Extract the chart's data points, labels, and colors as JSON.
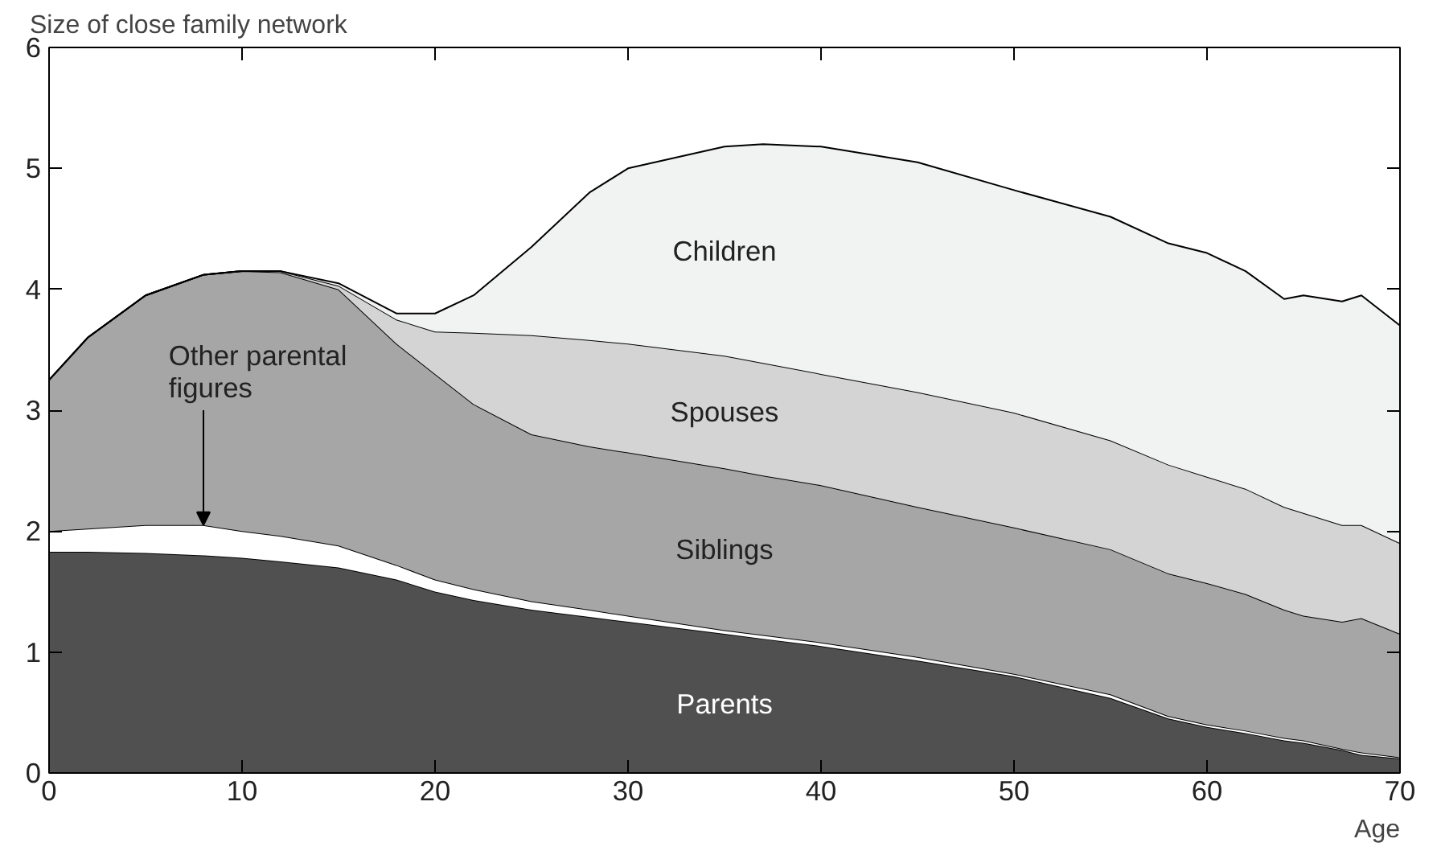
{
  "chart_data": {
    "type": "area",
    "stacked": true,
    "xlabel": "Age",
    "ylabel": "Size of close family network",
    "x": [
      0,
      2,
      5,
      8,
      10,
      12,
      15,
      18,
      20,
      22,
      25,
      28,
      30,
      35,
      37,
      40,
      45,
      50,
      55,
      58,
      60,
      62,
      64,
      65,
      67,
      68,
      70
    ],
    "xlim": [
      0,
      70
    ],
    "ylim": [
      0,
      6
    ],
    "xticks": [
      0,
      10,
      20,
      30,
      40,
      50,
      60,
      70
    ],
    "yticks": [
      0,
      1,
      2,
      3,
      4,
      5,
      6
    ],
    "grid": false,
    "series": [
      {
        "name": "Parents",
        "color": "#505050",
        "values": [
          1.83,
          1.83,
          1.82,
          1.8,
          1.78,
          1.75,
          1.7,
          1.6,
          1.5,
          1.43,
          1.35,
          1.29,
          1.25,
          1.15,
          1.11,
          1.05,
          0.93,
          0.8,
          0.62,
          0.45,
          0.38,
          0.33,
          0.27,
          0.25,
          0.19,
          0.15,
          0.12
        ]
      },
      {
        "name": "Other parental figures",
        "color": "#ffffff",
        "values": [
          0.17,
          0.19,
          0.23,
          0.25,
          0.22,
          0.21,
          0.18,
          0.12,
          0.1,
          0.09,
          0.07,
          0.06,
          0.05,
          0.03,
          0.03,
          0.03,
          0.03,
          0.02,
          0.03,
          0.02,
          0.02,
          0.02,
          0.02,
          0.02,
          0.01,
          0.02,
          0.01
        ]
      },
      {
        "name": "Siblings",
        "color": "#a6a6a6",
        "values": [
          1.25,
          1.58,
          1.9,
          2.07,
          2.15,
          2.18,
          2.12,
          1.83,
          1.7,
          1.53,
          1.38,
          1.35,
          1.35,
          1.34,
          1.32,
          1.3,
          1.24,
          1.21,
          1.2,
          1.18,
          1.17,
          1.13,
          1.06,
          1.03,
          1.05,
          1.11,
          1.02
        ]
      },
      {
        "name": "Spouses",
        "color": "#d4d4d4",
        "values": [
          0,
          0,
          0,
          0,
          0,
          0.01,
          0.03,
          0.2,
          0.35,
          0.59,
          0.82,
          0.88,
          0.9,
          0.93,
          0.93,
          0.92,
          0.95,
          0.95,
          0.9,
          0.9,
          0.88,
          0.87,
          0.85,
          0.85,
          0.8,
          0.77,
          0.75
        ]
      },
      {
        "name": "Children",
        "color": "#f1f3f2",
        "values": [
          0,
          0,
          0,
          0,
          0,
          0,
          0.02,
          0.05,
          0.15,
          0.31,
          0.73,
          1.22,
          1.45,
          1.73,
          1.81,
          1.88,
          1.9,
          1.84,
          1.85,
          1.83,
          1.85,
          1.8,
          1.72,
          1.8,
          1.85,
          1.9,
          1.8
        ]
      }
    ]
  }
}
